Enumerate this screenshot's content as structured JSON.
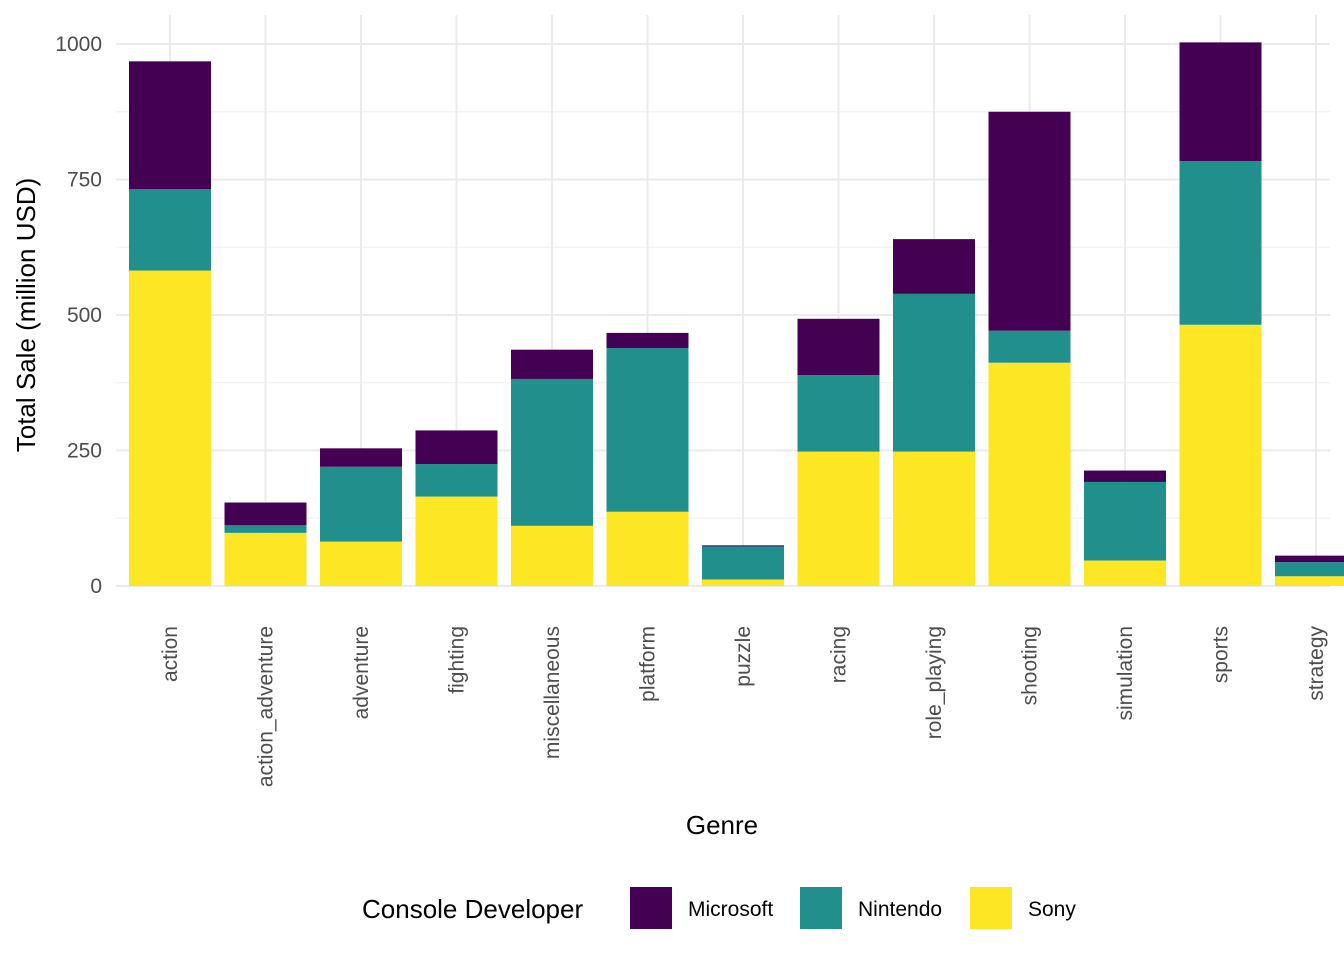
{
  "chart_data": {
    "type": "bar",
    "stacked": true,
    "title": "",
    "xlabel": "Genre",
    "ylabel": "Total Sale (million USD)",
    "ylim": [
      0,
      1000
    ],
    "yticks": [
      0,
      250,
      500,
      750,
      1000
    ],
    "grid": true,
    "legend_position": "bottom",
    "legend_title": "Console Developer",
    "categories": [
      "action",
      "action_adventure",
      "adventure",
      "fighting",
      "miscellaneous",
      "platform",
      "puzzle",
      "racing",
      "role_playing",
      "shooting",
      "simulation",
      "sports",
      "strategy"
    ],
    "series": [
      {
        "name": "Sony",
        "color": "#FDE725",
        "values": [
          582,
          98,
          82,
          165,
          111,
          137,
          12,
          248,
          248,
          412,
          47,
          482,
          18
        ]
      },
      {
        "name": "Nintendo",
        "color": "#21908C",
        "values": [
          150,
          14,
          138,
          60,
          271,
          302,
          61,
          141,
          291,
          59,
          145,
          302,
          26
        ]
      },
      {
        "name": "Microsoft",
        "color": "#440154",
        "values": [
          236,
          42,
          34,
          62,
          54,
          28,
          2,
          104,
          101,
          404,
          21,
          219,
          12
        ]
      }
    ],
    "legend_order": [
      "Microsoft",
      "Nintendo",
      "Sony"
    ]
  }
}
